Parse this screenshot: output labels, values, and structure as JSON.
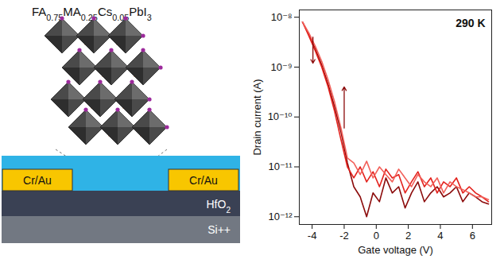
{
  "diagram": {
    "formula": "FA0.75MA0.25Cs0.05PbI3",
    "layers": [
      {
        "label": "Cr/Au"
      },
      {
        "label": "Cr/Au"
      },
      {
        "label": "HfO2"
      },
      {
        "label": "Si++"
      }
    ]
  },
  "chart_data": {
    "type": "line",
    "x_label": "Gate voltage (V)",
    "y_label": "Drain current (A)",
    "annotation": "290 K",
    "log": "y",
    "grid": false,
    "xlim": [
      -4.8,
      7.2
    ],
    "xticks": [
      -4,
      -2,
      0,
      2,
      4,
      6
    ],
    "ylim": [
      7e-13,
      1.4e-08
    ],
    "yticks": [
      {
        "value": 1e-08,
        "label": "10⁻⁸"
      },
      {
        "value": 1e-09,
        "label": "10⁻⁹"
      },
      {
        "value": 1e-10,
        "label": "10⁻¹⁰"
      },
      {
        "value": 1e-11,
        "label": "10⁻¹¹"
      },
      {
        "value": 1e-12,
        "label": "10⁻¹²"
      }
    ],
    "x": [
      -4.6,
      -4.2,
      -3.8,
      -3.4,
      -3.0,
      -2.6,
      -2.2,
      -1.8,
      -1.4,
      -1.0,
      -0.6,
      -0.2,
      0.2,
      0.6,
      1.0,
      1.4,
      1.8,
      2.2,
      2.6,
      3.0,
      3.4,
      3.8,
      4.2,
      4.6,
      5.0,
      5.4,
      5.8,
      6.2,
      6.6,
      7.0
    ],
    "series": [
      {
        "color": "#8b0a0a",
        "values": [
          8e-09,
          4.5e-09,
          2.3e-09,
          1.1e-09,
          4.5e-10,
          1.6e-10,
          5e-11,
          1.2e-11,
          4e-12,
          2.5e-12,
          1e-12,
          3e-12,
          2e-12,
          6e-12,
          3e-12,
          4e-12,
          1.5e-12,
          3e-12,
          5e-12,
          2e-12,
          3e-12,
          4e-12,
          2.5e-12,
          3e-12,
          4e-12,
          2e-12,
          3e-12,
          2.5e-12,
          2e-12,
          1.8e-12
        ]
      },
      {
        "color": "#e3211c",
        "values": [
          8e-09,
          4.2e-09,
          2.1e-09,
          1e-09,
          4e-10,
          1.3e-10,
          3.5e-11,
          1e-11,
          6e-12,
          1e-11,
          5e-12,
          8e-12,
          4e-12,
          9e-12,
          6e-12,
          7e-12,
          3e-12,
          5e-12,
          8e-12,
          4e-12,
          6e-12,
          3e-12,
          5e-12,
          4e-12,
          6e-12,
          3e-12,
          4e-12,
          3e-12,
          2.5e-12,
          2e-12
        ]
      },
      {
        "color": "#f2605a",
        "values": [
          8e-09,
          4.8e-09,
          2.6e-09,
          1.3e-09,
          5.5e-10,
          2e-10,
          6e-11,
          1.5e-11,
          1.2e-11,
          7e-12,
          1.3e-11,
          6e-12,
          1e-11,
          7e-12,
          5e-12,
          9e-12,
          6e-12,
          4e-12,
          7e-12,
          5e-12,
          4e-12,
          6e-12,
          3e-12,
          5e-12,
          4e-12,
          3.5e-12,
          3e-12,
          2.5e-12,
          2.5e-12,
          2.2e-12
        ]
      }
    ],
    "arrows": [
      {
        "x1": -3.95,
        "y1": 4e-09,
        "x2": -3.95,
        "y2": 1.2e-09
      },
      {
        "x1": -2.0,
        "y1": 6e-11,
        "x2": -2.0,
        "y2": 4e-10
      }
    ]
  }
}
